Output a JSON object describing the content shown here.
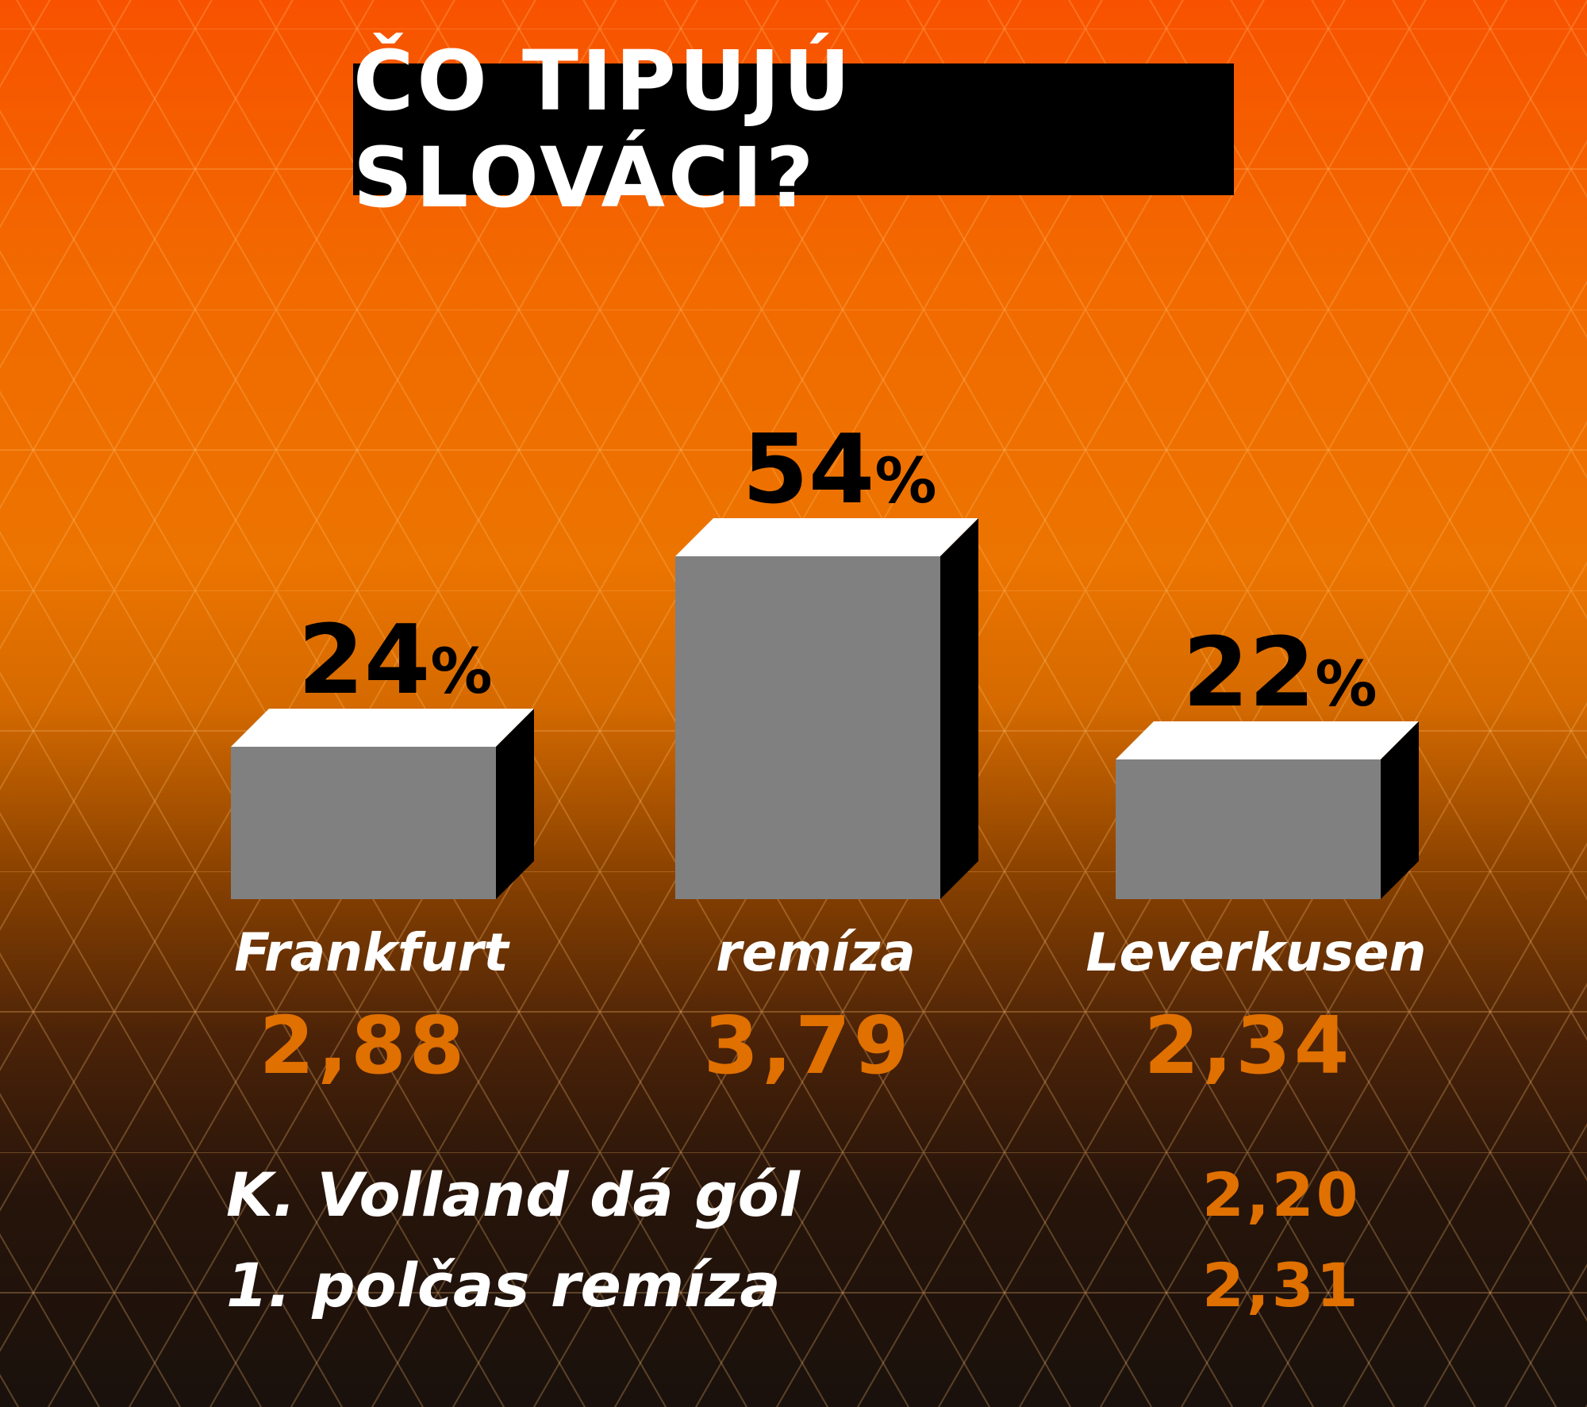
{
  "title": "ČO TIPUJÚ SLOVÁCI?",
  "colors": {
    "bar_front": "#808080",
    "bar_top": "#ffffff",
    "bar_side": "#000000",
    "odds": "#e07000",
    "title_bg": "#000000"
  },
  "chart_data": {
    "type": "bar",
    "title": "ČO TIPUJÚ SLOVÁCI?",
    "categories": [
      "Frankfurt",
      "remíza",
      "Leverkusen"
    ],
    "values": [
      24,
      54,
      22
    ],
    "value_labels": [
      "24",
      "54",
      "22"
    ],
    "unit": "%",
    "odds": [
      "2,88",
      "3,79",
      "2,34"
    ],
    "ylim": [
      0,
      60
    ],
    "grid": false
  },
  "extra_bets": [
    {
      "label": "K. Volland dá gól",
      "odd": "2,20"
    },
    {
      "label": "1. polčas remíza",
      "odd": "2,31"
    }
  ]
}
